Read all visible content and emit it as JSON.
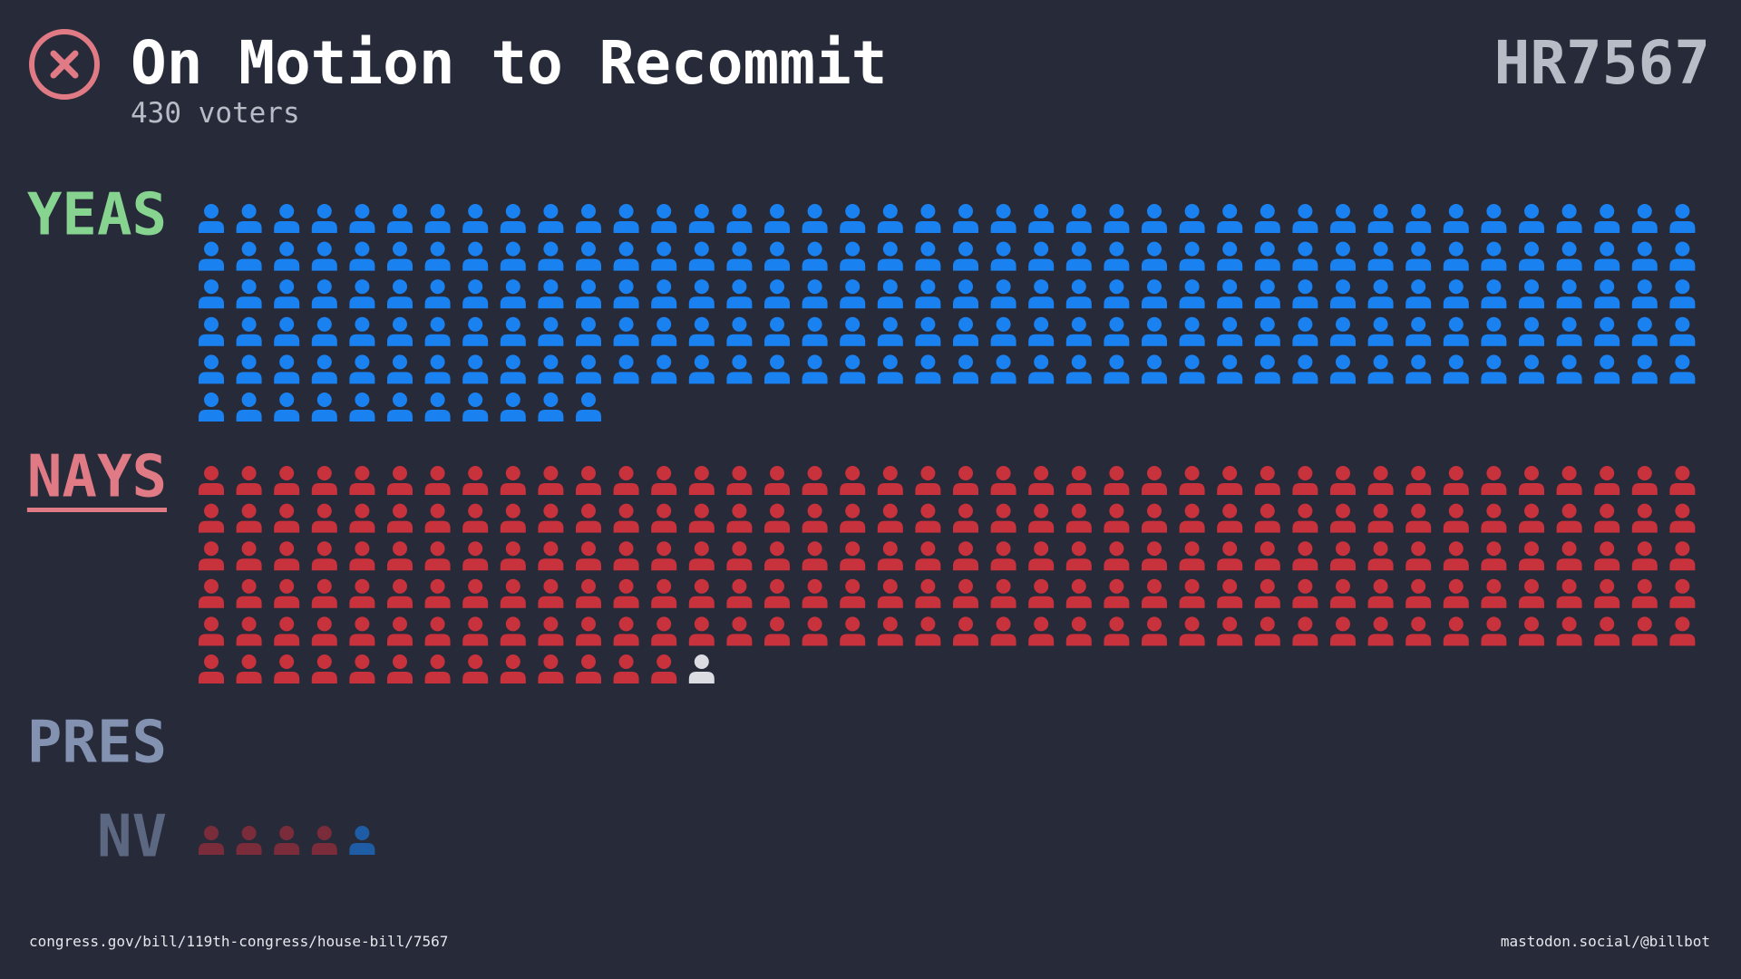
{
  "header": {
    "title": "On Motion to Recommit",
    "subtitle": "430 voters",
    "bill": "HR7567"
  },
  "groups": [
    {
      "label": "YEAS",
      "color": "#86d48f",
      "segments": [
        {
          "color": "#1a82f0",
          "count": 211
        }
      ]
    },
    {
      "label": "NAYS",
      "color": "#e07a84",
      "segments": [
        {
          "color": "#c8323c",
          "count": 213
        },
        {
          "color": "#dcdde2",
          "count": 1
        }
      ]
    },
    {
      "label": "PRES",
      "color": "#8392b0",
      "segments": []
    },
    {
      "label": "NV",
      "color": "#5c6782",
      "segments": [
        {
          "color": "#7a2c3a",
          "count": 4
        },
        {
          "color": "#1f5ca6",
          "count": 1
        }
      ]
    }
  ],
  "footer": {
    "left": "congress.gov/bill/119th-congress/house-bill/7567",
    "right": "mastodon.social/@billbot"
  }
}
